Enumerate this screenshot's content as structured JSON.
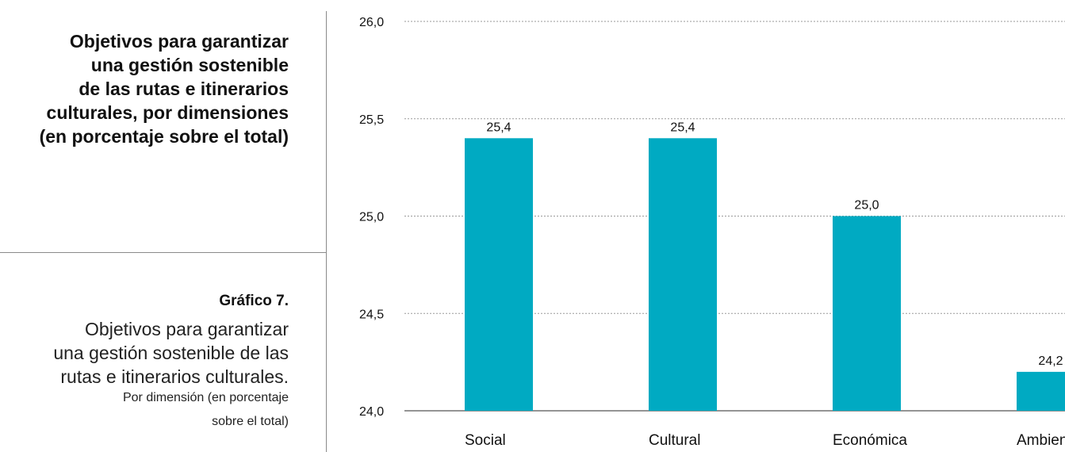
{
  "heading": {
    "lines": [
      "Objetivos para garantizar",
      "una gestión sostenible",
      "de las rutas e itinerarios",
      "culturales, por dimensiones",
      "(en porcentaje sobre el total)"
    ]
  },
  "figure": {
    "number": "Gráfico 7.",
    "title_lines": [
      "Objetivos para garantizar",
      "una gestión sostenible de las",
      "rutas e itinerarios culturales."
    ],
    "subtitle_lines": [
      "Por dimensión (en porcentaje",
      "sobre el total)"
    ]
  },
  "colors": {
    "bar": "#00aac2",
    "grid": "#9a9a9a",
    "axis": "#555555"
  },
  "chart_data": {
    "type": "bar",
    "title": "",
    "xlabel": "",
    "ylabel": "",
    "categories": [
      "Social",
      "Cultural",
      "Económica",
      "Ambiental"
    ],
    "values": [
      25.4,
      25.4,
      25.0,
      24.2
    ],
    "data_labels": [
      "25,4",
      "25,4",
      "25,0",
      "24,2"
    ],
    "ylim": [
      24.0,
      26.0
    ],
    "yticks": [
      24.0,
      24.5,
      25.0,
      25.5,
      26.0
    ],
    "ytick_labels": [
      "24,0",
      "24,5",
      "25,0",
      "25,5",
      "26,0"
    ],
    "grid": true,
    "legend": "none"
  }
}
